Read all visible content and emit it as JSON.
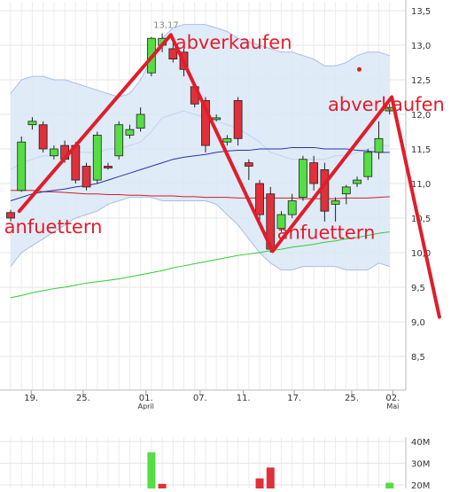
{
  "chart_data": {
    "type": "candlestick",
    "y_axis": {
      "ticks": [
        "13,5",
        "13,0",
        "12,5",
        "12,0",
        "11,5",
        "11,0",
        "10,5",
        "10,0",
        "9,5",
        "9,0",
        "8,5"
      ],
      "ylim": [
        8.1,
        13.6
      ],
      "grid": true,
      "side": "right"
    },
    "x_axis": {
      "ticks": [
        "19.",
        "25.",
        "01.",
        "07.",
        "11.",
        "17.",
        "25.",
        "02."
      ],
      "month_labels": [
        "April",
        "Mai"
      ],
      "grid": true
    },
    "high_label": "13,17",
    "candles": [
      {
        "o": 10.58,
        "c": 10.5,
        "h": 10.62,
        "l": 10.45,
        "dir": "down"
      },
      {
        "o": 10.9,
        "c": 11.6,
        "h": 11.68,
        "l": 10.88,
        "dir": "up"
      },
      {
        "o": 11.85,
        "c": 11.9,
        "h": 11.96,
        "l": 11.78,
        "dir": "up"
      },
      {
        "o": 11.85,
        "c": 11.5,
        "h": 11.9,
        "l": 11.45,
        "dir": "down"
      },
      {
        "o": 11.4,
        "c": 11.5,
        "h": 11.55,
        "l": 11.35,
        "dir": "up"
      },
      {
        "o": 11.55,
        "c": 11.35,
        "h": 11.62,
        "l": 11.3,
        "dir": "down"
      },
      {
        "o": 11.55,
        "c": 11.05,
        "h": 11.6,
        "l": 11.0,
        "dir": "down"
      },
      {
        "o": 11.25,
        "c": 10.95,
        "h": 11.3,
        "l": 10.9,
        "dir": "down"
      },
      {
        "o": 11.05,
        "c": 11.7,
        "h": 11.75,
        "l": 11.0,
        "dir": "up"
      },
      {
        "o": 11.25,
        "c": 11.25,
        "h": 11.3,
        "l": 11.2,
        "dir": "down"
      },
      {
        "o": 11.4,
        "c": 11.85,
        "h": 11.9,
        "l": 11.35,
        "dir": "up"
      },
      {
        "o": 11.7,
        "c": 11.78,
        "h": 11.85,
        "l": 11.65,
        "dir": "up"
      },
      {
        "o": 11.8,
        "c": 12.0,
        "h": 12.1,
        "l": 11.75,
        "dir": "up"
      },
      {
        "o": 12.6,
        "c": 13.1,
        "h": 13.12,
        "l": 12.55,
        "dir": "up"
      },
      {
        "o": 13.0,
        "c": 13.1,
        "h": 13.17,
        "l": 12.9,
        "dir": "up"
      },
      {
        "o": 12.95,
        "c": 12.8,
        "h": 13.05,
        "l": 12.75,
        "dir": "down"
      },
      {
        "o": 12.9,
        "c": 12.65,
        "h": 12.95,
        "l": 12.55,
        "dir": "down"
      },
      {
        "o": 12.4,
        "c": 12.15,
        "h": 12.45,
        "l": 12.1,
        "dir": "down"
      },
      {
        "o": 12.2,
        "c": 11.55,
        "h": 12.25,
        "l": 11.45,
        "dir": "down"
      },
      {
        "o": 11.95,
        "c": 11.95,
        "h": 12.0,
        "l": 11.9,
        "dir": "up"
      },
      {
        "o": 11.6,
        "c": 11.65,
        "h": 11.7,
        "l": 11.55,
        "dir": "up"
      },
      {
        "o": 12.2,
        "c": 11.65,
        "h": 12.25,
        "l": 11.55,
        "dir": "down"
      },
      {
        "o": 11.3,
        "c": 11.25,
        "h": 11.35,
        "l": 11.05,
        "dir": "down"
      },
      {
        "o": 11.0,
        "c": 10.55,
        "h": 11.05,
        "l": 10.45,
        "dir": "down"
      },
      {
        "o": 10.85,
        "c": 10.05,
        "h": 10.95,
        "l": 10.0,
        "dir": "down"
      },
      {
        "o": 10.35,
        "c": 10.55,
        "h": 10.6,
        "l": 10.3,
        "dir": "up"
      },
      {
        "o": 10.55,
        "c": 10.75,
        "h": 10.85,
        "l": 10.5,
        "dir": "up"
      },
      {
        "o": 10.8,
        "c": 11.35,
        "h": 11.4,
        "l": 10.75,
        "dir": "up"
      },
      {
        "o": 11.3,
        "c": 11.0,
        "h": 11.4,
        "l": 10.9,
        "dir": "down"
      },
      {
        "o": 11.2,
        "c": 10.6,
        "h": 11.3,
        "l": 10.45,
        "dir": "down"
      },
      {
        "o": 10.7,
        "c": 10.75,
        "h": 10.8,
        "l": 10.45,
        "dir": "up"
      },
      {
        "o": 10.85,
        "c": 10.95,
        "h": 10.98,
        "l": 10.7,
        "dir": "up"
      },
      {
        "o": 11.0,
        "c": 11.05,
        "h": 11.1,
        "l": 10.95,
        "dir": "up"
      },
      {
        "o": 11.1,
        "c": 11.45,
        "h": 11.5,
        "l": 11.05,
        "dir": "up"
      },
      {
        "o": 11.45,
        "c": 11.65,
        "h": 11.9,
        "l": 11.35,
        "dir": "up"
      },
      {
        "o": 12.05,
        "c": 12.1,
        "h": 12.15,
        "l": 12.0,
        "dir": "up"
      }
    ],
    "volume": {
      "ticks": [
        "40M",
        "30M",
        "20M"
      ],
      "bars": [
        {
          "i": 13,
          "v": 35,
          "dir": "up"
        },
        {
          "i": 14,
          "v": 20.5,
          "dir": "down"
        },
        {
          "i": 23,
          "v": 23,
          "dir": "down"
        },
        {
          "i": 24,
          "v": 28,
          "dir": "down"
        },
        {
          "i": 35,
          "v": 21,
          "dir": "up"
        }
      ]
    },
    "lines": {
      "bollinger_upper": [
        12.3,
        12.5,
        12.55,
        12.55,
        12.5,
        12.5,
        12.45,
        12.4,
        12.35,
        12.3,
        12.25,
        12.3,
        12.5,
        12.8,
        13.1,
        13.25,
        13.3,
        13.3,
        13.3,
        13.25,
        13.2,
        13.1,
        13.05,
        13.0,
        12.95,
        12.9,
        12.9,
        12.85,
        12.8,
        12.7,
        12.7,
        12.75,
        12.85,
        12.9,
        12.9,
        12.85
      ],
      "bollinger_lower": [
        9.8,
        10.0,
        10.1,
        10.2,
        10.3,
        10.4,
        10.5,
        10.55,
        10.6,
        10.7,
        10.75,
        10.8,
        10.8,
        10.8,
        10.75,
        10.75,
        10.75,
        10.75,
        10.75,
        10.7,
        10.55,
        10.4,
        10.2,
        10.0,
        9.85,
        9.75,
        9.75,
        9.8,
        9.8,
        9.8,
        9.8,
        9.75,
        9.75,
        9.75,
        9.85,
        9.8
      ],
      "bollinger_mid": [
        11.2,
        11.3,
        11.35,
        11.4,
        11.4,
        11.45,
        11.45,
        11.45,
        11.45,
        11.5,
        11.5,
        11.55,
        11.6,
        11.75,
        11.95,
        12.0,
        12.05,
        12.0,
        11.95,
        11.9,
        11.85,
        11.8,
        11.7,
        11.6,
        11.45,
        11.4,
        11.35,
        11.35,
        11.35,
        11.35,
        11.4,
        11.4,
        11.45,
        11.5,
        11.55,
        11.55
      ],
      "sma_blue": [
        10.75,
        10.8,
        10.85,
        10.88,
        10.9,
        10.92,
        10.95,
        10.97,
        11.0,
        11.05,
        11.1,
        11.15,
        11.2,
        11.25,
        11.3,
        11.35,
        11.38,
        11.4,
        11.42,
        11.45,
        11.47,
        11.48,
        11.48,
        11.5,
        11.5,
        11.5,
        11.52,
        11.52,
        11.52,
        11.5,
        11.5,
        11.5,
        11.48,
        11.47,
        11.45,
        11.45
      ],
      "sma_red": [
        10.9,
        10.9,
        10.9,
        10.88,
        10.88,
        10.87,
        10.86,
        10.85,
        10.85,
        10.84,
        10.84,
        10.83,
        10.83,
        10.82,
        10.82,
        10.82,
        10.81,
        10.81,
        10.8,
        10.8,
        10.8,
        10.79,
        10.79,
        10.79,
        10.79,
        10.79,
        10.79,
        10.78,
        10.78,
        10.78,
        10.78,
        10.79,
        10.79,
        10.79,
        10.8,
        10.81
      ],
      "sma_green": [
        9.35,
        9.38,
        9.42,
        9.45,
        9.48,
        9.5,
        9.53,
        9.56,
        9.58,
        9.6,
        9.62,
        9.65,
        9.68,
        9.71,
        9.74,
        9.78,
        9.81,
        9.84,
        9.87,
        9.9,
        9.93,
        9.96,
        9.98,
        10.0,
        10.03,
        10.05,
        10.08,
        10.1,
        10.12,
        10.15,
        10.17,
        10.2,
        10.22,
        10.25,
        10.28,
        10.3
      ]
    },
    "annotations": {
      "labels": [
        {
          "text": "anfuettern",
          "x_idx": -0.6,
          "y": 10.28
        },
        {
          "text": "abverkaufen",
          "x_idx": 15.2,
          "y": 12.95
        },
        {
          "text": "abverkaufen",
          "x_idx": 29.3,
          "y": 12.05
        },
        {
          "text": "anfuettern",
          "x_idx": 24.6,
          "y": 10.2
        }
      ],
      "trend_line": [
        [
          0.8,
          10.6
        ],
        [
          14.8,
          13.15
        ],
        [
          24.2,
          10.02
        ],
        [
          35.2,
          12.25
        ],
        [
          39.6,
          9.07
        ]
      ],
      "dot": {
        "x_idx": 32.2,
        "y": 12.65
      }
    }
  }
}
